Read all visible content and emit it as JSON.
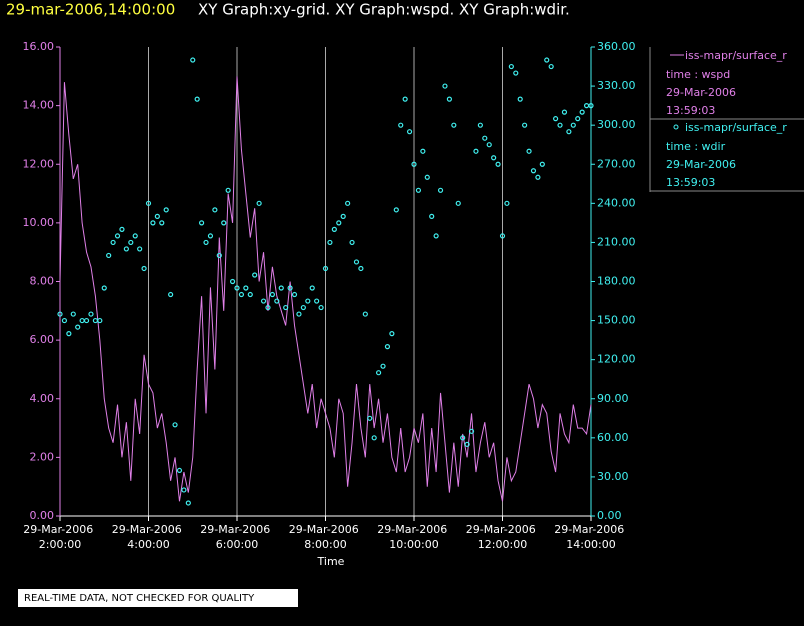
{
  "chart_data": {
    "type": "line",
    "title": "29-mar-2006,14:00:00",
    "subtitle": "XY Graph:xy-grid.  XY Graph:wspd.  XY Graph:wdir.",
    "xlabel": "Time",
    "note": "REAL-TIME DATA, NOT CHECKED FOR QUALITY",
    "grid": true,
    "xlim": [
      2,
      14
    ],
    "xticks": [
      {
        "value": 2,
        "label": "29-Mar-2006 2:00:00"
      },
      {
        "value": 4,
        "label": "29-Mar-2006 4:00:00"
      },
      {
        "value": 6,
        "label": "29-Mar-2006 6:00:00"
      },
      {
        "value": 8,
        "label": "29-Mar-2006 8:00:00"
      },
      {
        "value": 10,
        "label": "29-Mar-2006 10:00:00"
      },
      {
        "value": 12,
        "label": "29-Mar-2006 12:00:00"
      },
      {
        "value": 14,
        "label": "29-Mar-2006 14:00:00"
      }
    ],
    "ylim": [
      0,
      16
    ],
    "yticks": [
      {
        "value": 0,
        "label": "0.00"
      },
      {
        "value": 2,
        "label": "2.00"
      },
      {
        "value": 4,
        "label": "4.00"
      },
      {
        "value": 6,
        "label": "6.00"
      },
      {
        "value": 8,
        "label": "8.00"
      },
      {
        "value": 10,
        "label": "10.00"
      },
      {
        "value": 12,
        "label": "12.00"
      },
      {
        "value": 14,
        "label": "14.00"
      },
      {
        "value": 16,
        "label": "16.00"
      }
    ],
    "y2lim": [
      0,
      360
    ],
    "y2ticks": [
      {
        "value": 0,
        "label": "0.00"
      },
      {
        "value": 30,
        "label": "30.00"
      },
      {
        "value": 60,
        "label": "60.00"
      },
      {
        "value": 90,
        "label": "90.00"
      },
      {
        "value": 120,
        "label": "120.00"
      },
      {
        "value": 150,
        "label": "150.00"
      },
      {
        "value": 180,
        "label": "180.00"
      },
      {
        "value": 210,
        "label": "210.00"
      },
      {
        "value": 240,
        "label": "240.00"
      },
      {
        "value": 270,
        "label": "270.00"
      },
      {
        "value": 300,
        "label": "300.00"
      },
      {
        "value": 330,
        "label": "330.00"
      },
      {
        "value": 360,
        "label": "360.00"
      }
    ],
    "x": [
      2.0,
      2.1,
      2.2,
      2.3,
      2.4,
      2.5,
      2.6,
      2.7,
      2.8,
      2.9,
      3.0,
      3.1,
      3.2,
      3.3,
      3.4,
      3.5,
      3.6,
      3.7,
      3.8,
      3.9,
      4.0,
      4.1,
      4.2,
      4.3,
      4.4,
      4.5,
      4.6,
      4.7,
      4.8,
      4.9,
      5.0,
      5.1,
      5.2,
      5.3,
      5.4,
      5.5,
      5.6,
      5.7,
      5.8,
      5.9,
      6.0,
      6.1,
      6.2,
      6.3,
      6.4,
      6.5,
      6.6,
      6.7,
      6.8,
      6.9,
      7.0,
      7.1,
      7.2,
      7.3,
      7.4,
      7.5,
      7.6,
      7.7,
      7.8,
      7.9,
      8.0,
      8.1,
      8.2,
      8.3,
      8.4,
      8.5,
      8.6,
      8.7,
      8.8,
      8.9,
      9.0,
      9.1,
      9.2,
      9.3,
      9.4,
      9.5,
      9.6,
      9.7,
      9.8,
      9.9,
      10.0,
      10.1,
      10.2,
      10.3,
      10.4,
      10.5,
      10.6,
      10.7,
      10.8,
      10.9,
      11.0,
      11.1,
      11.2,
      11.3,
      11.4,
      11.5,
      11.6,
      11.7,
      11.8,
      11.9,
      12.0,
      12.1,
      12.2,
      12.3,
      12.4,
      12.5,
      12.6,
      12.7,
      12.8,
      12.9,
      13.0,
      13.1,
      13.2,
      13.3,
      13.4,
      13.5,
      13.6,
      13.7,
      13.8,
      13.9,
      14.0
    ],
    "series": [
      {
        "name": "iss-mapr/surface_r",
        "legend_details": [
          "time : wspd",
          "29-Mar-2006",
          "13:59:03"
        ],
        "type": "line",
        "color": "#e080e8",
        "values": [
          8.0,
          14.8,
          13.0,
          11.5,
          12.0,
          10.0,
          9.0,
          8.5,
          7.5,
          6.0,
          4.0,
          3.0,
          2.5,
          3.8,
          2.0,
          3.2,
          1.2,
          4.0,
          2.8,
          5.5,
          4.5,
          4.2,
          3.0,
          3.5,
          2.5,
          1.2,
          2.0,
          0.5,
          1.5,
          0.8,
          2.0,
          5.0,
          7.5,
          3.5,
          7.8,
          5.0,
          9.5,
          7.0,
          11.0,
          10.0,
          15.0,
          12.5,
          11.0,
          9.5,
          10.5,
          8.0,
          9.0,
          7.0,
          8.5,
          7.5,
          7.0,
          6.5,
          8.0,
          6.5,
          5.5,
          4.5,
          3.5,
          4.5,
          3.0,
          4.0,
          3.5,
          3.0,
          2.0,
          4.0,
          3.5,
          1.0,
          2.5,
          4.5,
          3.0,
          2.0,
          4.5,
          3.0,
          4.0,
          2.5,
          3.5,
          2.0,
          1.5,
          3.0,
          1.5,
          2.0,
          3.0,
          2.5,
          3.5,
          1.0,
          3.0,
          1.5,
          4.2,
          2.5,
          0.8,
          2.5,
          1.0,
          2.8,
          2.0,
          3.5,
          1.5,
          2.5,
          3.2,
          2.0,
          2.5,
          1.2,
          0.5,
          2.0,
          1.2,
          1.5,
          2.5,
          3.5,
          4.5,
          4.0,
          3.0,
          3.8,
          3.5,
          2.2,
          1.5,
          3.5,
          2.8,
          2.5,
          3.8,
          3.0,
          3.0,
          2.8,
          3.8
        ]
      },
      {
        "name": "iss-mapr/surface_r",
        "legend_details": [
          "time : wdir",
          "29-Mar-2006",
          "13:59:03"
        ],
        "type": "scatter",
        "axis": "y2",
        "color": "#40f0f0",
        "values": [
          155,
          150,
          140,
          155,
          145,
          150,
          150,
          155,
          150,
          150,
          175,
          200,
          210,
          215,
          220,
          205,
          210,
          215,
          205,
          190,
          240,
          225,
          230,
          225,
          235,
          170,
          70,
          35,
          20,
          10,
          350,
          320,
          225,
          210,
          215,
          235,
          200,
          225,
          250,
          180,
          175,
          170,
          175,
          170,
          185,
          240,
          165,
          160,
          170,
          165,
          175,
          160,
          175,
          170,
          155,
          160,
          165,
          175,
          165,
          160,
          190,
          210,
          220,
          225,
          230,
          240,
          210,
          195,
          190,
          155,
          75,
          60,
          110,
          115,
          130,
          140,
          235,
          300,
          320,
          295,
          270,
          250,
          280,
          260,
          230,
          215,
          250,
          330,
          320,
          300,
          240,
          60,
          55,
          65,
          280,
          300,
          290,
          285,
          275,
          270,
          215,
          240,
          345,
          340,
          320,
          300,
          280,
          265,
          260,
          270,
          350,
          345,
          305,
          300,
          310,
          295,
          300,
          305,
          310,
          315,
          315
        ]
      }
    ]
  }
}
